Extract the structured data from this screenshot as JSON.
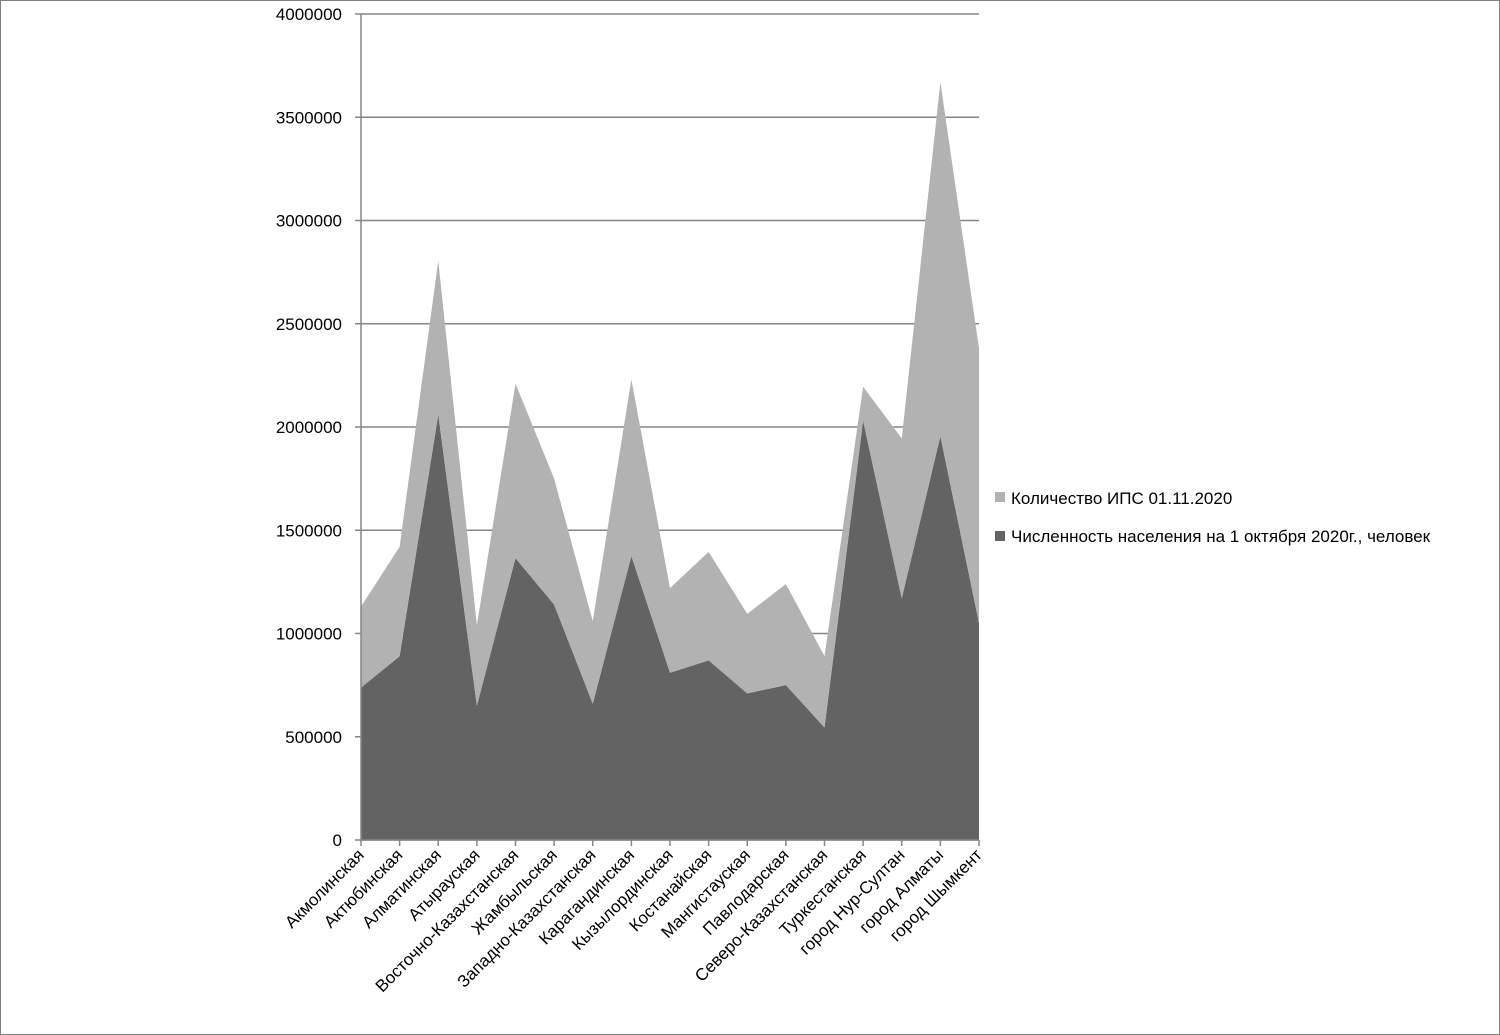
{
  "chart_data": {
    "type": "area",
    "stacked": true,
    "categories": [
      "Акмолинская",
      "Актюбинская",
      "Алматинская",
      "Атырауская",
      "Восточно-Казахстанская",
      "Жамбыльская",
      "Западно-Казахстанская",
      "Карагандинская",
      "Кызылординская",
      "Костанайская",
      "Мангистауская",
      "Павлодарская",
      "Северо-Казахстанская",
      "Туркестанская",
      "город Нур-Султан",
      "город Алматы",
      "город Шымкент"
    ],
    "series": [
      {
        "name": "Численность населения на 1 октября 2020г., человек",
        "color": "#636363",
        "values": [
          738000,
          890000,
          2060000,
          650000,
          1365000,
          1140000,
          660000,
          1375000,
          810000,
          870000,
          710000,
          750000,
          545000,
          2030000,
          1170000,
          1955000,
          1050000
        ]
      },
      {
        "name": "Количество ИПС 01.11.2020",
        "color": "#b2b2b2",
        "values": [
          392000,
          530000,
          745000,
          390000,
          845000,
          610000,
          400000,
          855000,
          410000,
          525000,
          385000,
          490000,
          345000,
          165000,
          775000,
          1715000,
          1330000
        ]
      }
    ],
    "yticks": [
      "0",
      "500000",
      "1000000",
      "1500000",
      "2000000",
      "2500000",
      "3000000",
      "3500000",
      "4000000"
    ],
    "ylim": [
      0,
      4000000
    ],
    "grid": true,
    "legend_position": "right"
  },
  "colors": {
    "grid": "#868686",
    "axis": "#868686"
  }
}
